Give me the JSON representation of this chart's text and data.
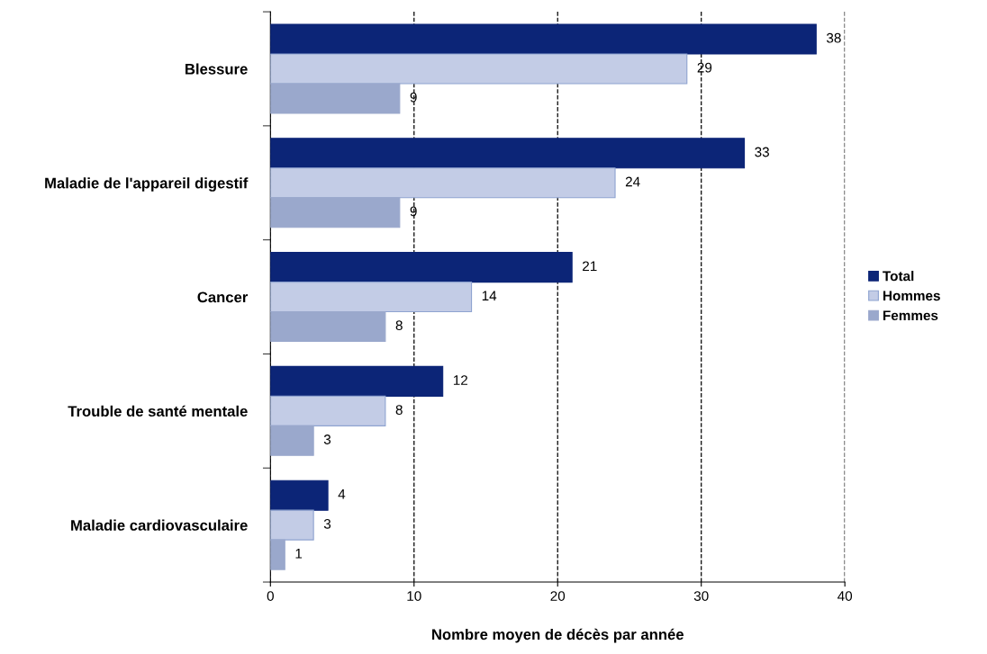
{
  "chart_data": {
    "type": "bar",
    "orientation": "horizontal",
    "xlabel": "Nombre moyen de décès par année",
    "categories": [
      "Blessure",
      "Maladie de l'appareil digestif",
      "Cancer",
      "Trouble de santé mentale",
      "Maladie cardiovasculaire"
    ],
    "series": [
      {
        "name": "Total",
        "color": "#0c2577",
        "values": [
          38,
          33,
          21,
          12,
          4
        ]
      },
      {
        "name": "Hommes",
        "color": "#c3cce6",
        "values": [
          29,
          24,
          14,
          8,
          3
        ]
      },
      {
        "name": "Femmes",
        "color": "#9aa8cc",
        "values": [
          9,
          9,
          8,
          3,
          1
        ]
      }
    ],
    "xlim": [
      0,
      40
    ],
    "xticks": [
      0,
      10,
      20,
      30,
      40
    ],
    "grid": "x",
    "legend": "right",
    "data_labels": true
  }
}
